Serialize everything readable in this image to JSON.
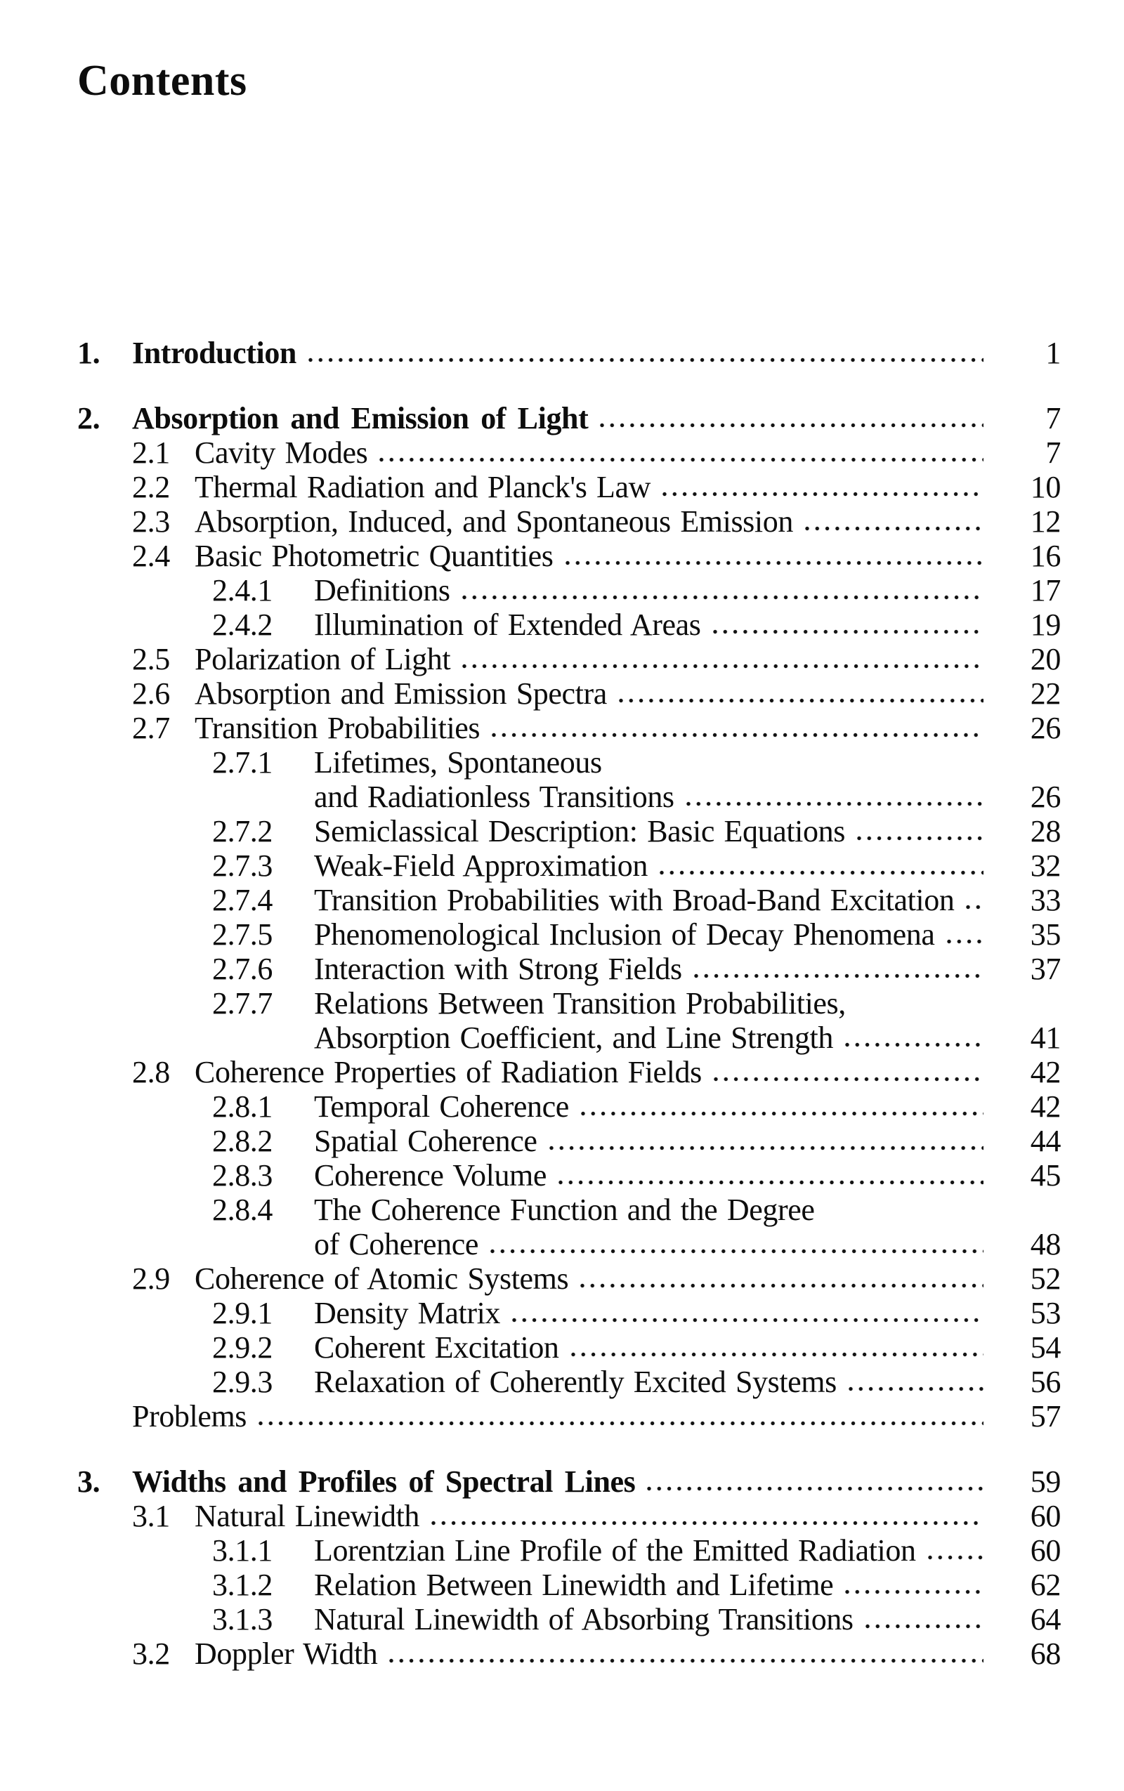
{
  "page": {
    "title": "Contents",
    "colors": {
      "text": "#0d0d0d",
      "background": "#ffffff"
    }
  },
  "toc": {
    "entries": [
      {
        "level": "chapter",
        "number": "1.",
        "title": "Introduction",
        "page": "1",
        "leader": true,
        "gap_before": false
      },
      {
        "level": "chapter",
        "number": "2.",
        "title": "Absorption and Emission of Light",
        "page": "7",
        "leader": true,
        "gap_before": true
      },
      {
        "level": "section",
        "number": "2.1",
        "title": "Cavity Modes",
        "page": "7",
        "leader": true,
        "gap_before": false
      },
      {
        "level": "section",
        "number": "2.2",
        "title": "Thermal Radiation and Planck's Law",
        "page": "10",
        "leader": true,
        "gap_before": false
      },
      {
        "level": "section",
        "number": "2.3",
        "title": "Absorption, Induced, and Spontaneous Emission",
        "page": "12",
        "leader": true,
        "gap_before": false
      },
      {
        "level": "section",
        "number": "2.4",
        "title": "Basic Photometric Quantities",
        "page": "16",
        "leader": true,
        "gap_before": false
      },
      {
        "level": "subsection",
        "number": "2.4.1",
        "title": "Definitions",
        "page": "17",
        "leader": true,
        "gap_before": false
      },
      {
        "level": "subsection",
        "number": "2.4.2",
        "title": "Illumination of Extended Areas",
        "page": "19",
        "leader": true,
        "gap_before": false
      },
      {
        "level": "section",
        "number": "2.5",
        "title": "Polarization of Light",
        "page": "20",
        "leader": true,
        "gap_before": false
      },
      {
        "level": "section",
        "number": "2.6",
        "title": "Absorption and Emission Spectra",
        "page": "22",
        "leader": true,
        "gap_before": false
      },
      {
        "level": "section",
        "number": "2.7",
        "title": "Transition Probabilities",
        "page": "26",
        "leader": true,
        "gap_before": false
      },
      {
        "level": "subsection",
        "number": "2.7.1",
        "title": "Lifetimes, Spontaneous",
        "page": "",
        "leader": false,
        "gap_before": false
      },
      {
        "level": "continuation",
        "number": "",
        "title": "and Radiationless Transitions",
        "page": "26",
        "leader": true,
        "gap_before": false
      },
      {
        "level": "subsection",
        "number": "2.7.2",
        "title": "Semiclassical Description: Basic Equations",
        "page": "28",
        "leader": true,
        "gap_before": false
      },
      {
        "level": "subsection",
        "number": "2.7.3",
        "title": "Weak-Field Approximation",
        "page": "32",
        "leader": true,
        "gap_before": false
      },
      {
        "level": "subsection",
        "number": "2.7.4",
        "title": "Transition Probabilities with Broad-Band Excitation",
        "page": "33",
        "leader": true,
        "gap_before": false
      },
      {
        "level": "subsection",
        "number": "2.7.5",
        "title": "Phenomenological Inclusion of Decay Phenomena",
        "page": "35",
        "leader": true,
        "gap_before": false
      },
      {
        "level": "subsection",
        "number": "2.7.6",
        "title": "Interaction with Strong Fields",
        "page": "37",
        "leader": true,
        "gap_before": false
      },
      {
        "level": "subsection",
        "number": "2.7.7",
        "title": "Relations Between Transition Probabilities,",
        "page": "",
        "leader": false,
        "gap_before": false
      },
      {
        "level": "continuation",
        "number": "",
        "title": "Absorption Coefficient, and Line Strength",
        "page": "41",
        "leader": true,
        "gap_before": false
      },
      {
        "level": "section",
        "number": "2.8",
        "title": "Coherence Properties of Radiation Fields",
        "page": "42",
        "leader": true,
        "gap_before": false
      },
      {
        "level": "subsection",
        "number": "2.8.1",
        "title": "Temporal Coherence",
        "page": "42",
        "leader": true,
        "gap_before": false
      },
      {
        "level": "subsection",
        "number": "2.8.2",
        "title": "Spatial Coherence",
        "page": "44",
        "leader": true,
        "gap_before": false
      },
      {
        "level": "subsection",
        "number": "2.8.3",
        "title": "Coherence Volume",
        "page": "45",
        "leader": true,
        "gap_before": false
      },
      {
        "level": "subsection",
        "number": "2.8.4",
        "title": "The Coherence Function and the Degree",
        "page": "",
        "leader": false,
        "gap_before": false
      },
      {
        "level": "continuation",
        "number": "",
        "title": "of Coherence",
        "page": "48",
        "leader": true,
        "gap_before": false
      },
      {
        "level": "section",
        "number": "2.9",
        "title": "Coherence of Atomic Systems",
        "page": "52",
        "leader": true,
        "gap_before": false
      },
      {
        "level": "subsection",
        "number": "2.9.1",
        "title": "Density Matrix",
        "page": "53",
        "leader": true,
        "gap_before": false
      },
      {
        "level": "subsection",
        "number": "2.9.2",
        "title": "Coherent Excitation",
        "page": "54",
        "leader": true,
        "gap_before": false
      },
      {
        "level": "subsection",
        "number": "2.9.3",
        "title": "Relaxation of Coherently Excited Systems",
        "page": "56",
        "leader": true,
        "gap_before": false
      },
      {
        "level": "problems",
        "number": "",
        "title": "Problems",
        "page": "57",
        "leader": true,
        "gap_before": false
      },
      {
        "level": "chapter",
        "number": "3.",
        "title": "Widths and Profiles of Spectral Lines",
        "page": "59",
        "leader": true,
        "gap_before": true
      },
      {
        "level": "section",
        "number": "3.1",
        "title": "Natural Linewidth",
        "page": "60",
        "leader": true,
        "gap_before": false
      },
      {
        "level": "subsection",
        "number": "3.1.1",
        "title": "Lorentzian Line Profile of the Emitted Radiation",
        "page": "60",
        "leader": true,
        "gap_before": false
      },
      {
        "level": "subsection",
        "number": "3.1.2",
        "title": "Relation Between Linewidth and Lifetime",
        "page": "62",
        "leader": true,
        "gap_before": false
      },
      {
        "level": "subsection",
        "number": "3.1.3",
        "title": "Natural Linewidth of Absorbing Transitions",
        "page": "64",
        "leader": true,
        "gap_before": false
      },
      {
        "level": "section",
        "number": "3.2",
        "title": "Doppler Width",
        "page": "68",
        "leader": true,
        "gap_before": false
      }
    ]
  }
}
